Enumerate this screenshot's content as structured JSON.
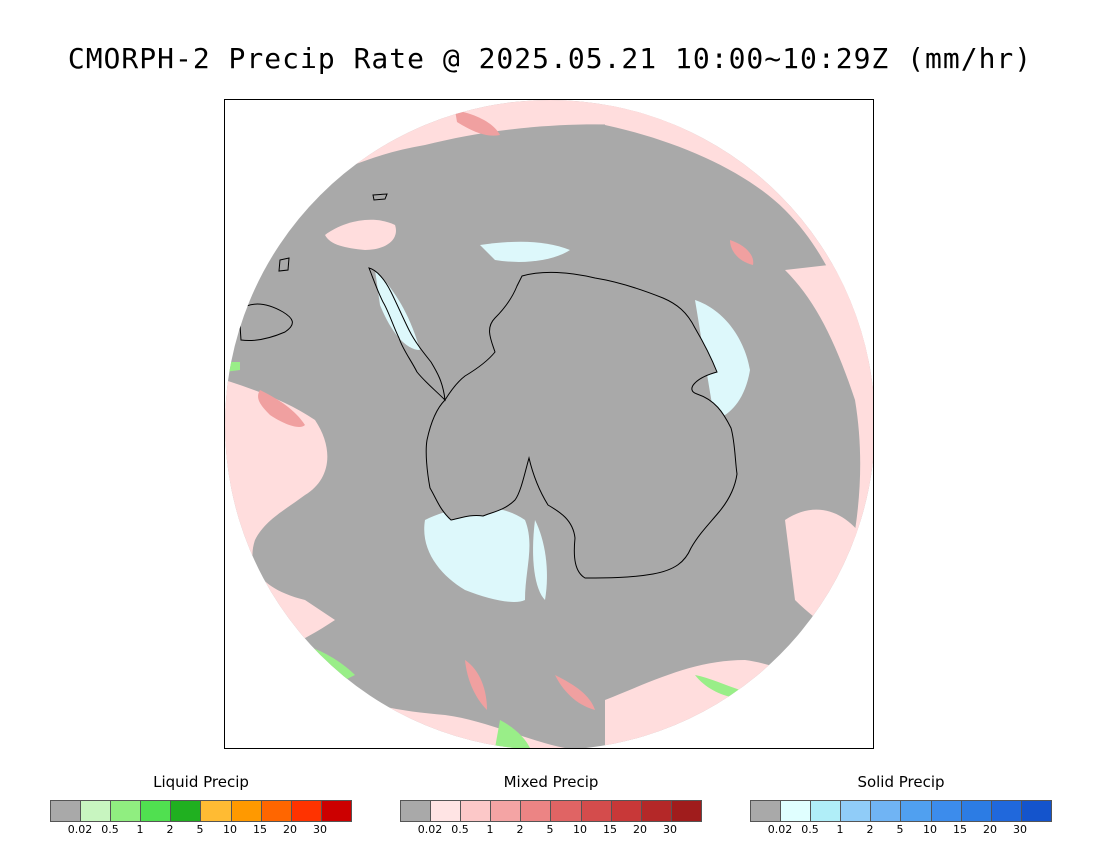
{
  "title": "CMORPH-2 Precip Rate @ 2025.05.21 10:00~10:29Z (mm/hr)",
  "map": {
    "projection": "south-polar-stereographic",
    "colors": {
      "no_precip": "#a9a9a9",
      "mixed_light": "#ffdddd",
      "mixed_moderate": "#f0a0a0",
      "solid_light": "#ddf8fb",
      "liquid_light": "#99ee88",
      "coastline": "#000000",
      "outside": "#ffffff"
    }
  },
  "legends": [
    {
      "title": "Liquid Precip",
      "colors": [
        "#a9a9a9",
        "#c8f5c0",
        "#90ee80",
        "#50e050",
        "#20b020",
        "#ffbb33",
        "#ff9900",
        "#ff6600",
        "#ff3300",
        "#cc0000"
      ],
      "ticks": [
        "0.02",
        "0.5",
        "1",
        "2",
        "5",
        "10",
        "15",
        "20",
        "30"
      ]
    },
    {
      "title": "Mixed Precip",
      "colors": [
        "#a9a9a9",
        "#ffe4e4",
        "#fcc8c8",
        "#f4a4a4",
        "#ec8484",
        "#e06464",
        "#d44c4c",
        "#c83838",
        "#b42828",
        "#a01c1c"
      ],
      "ticks": [
        "0.02",
        "0.5",
        "1",
        "2",
        "5",
        "10",
        "15",
        "20",
        "30"
      ]
    },
    {
      "title": "Solid Precip",
      "colors": [
        "#a9a9a9",
        "#e0ffff",
        "#b0eef8",
        "#90ccf8",
        "#70b4f4",
        "#50a0f0",
        "#3c8cec",
        "#2c7ce4",
        "#2068dc",
        "#1454cc"
      ],
      "ticks": [
        "0.02",
        "0.5",
        "1",
        "2",
        "5",
        "10",
        "15",
        "20",
        "30"
      ]
    }
  ]
}
